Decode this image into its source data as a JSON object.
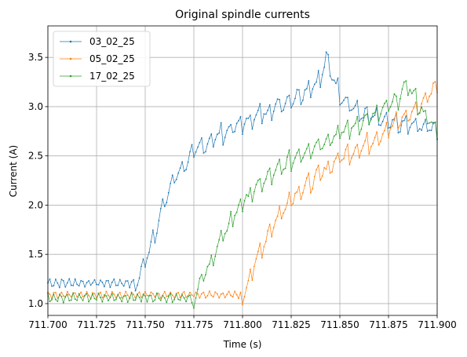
{
  "chart_data": {
    "type": "line",
    "title": "Original spindle currents",
    "xlabel": "Time (s)",
    "ylabel": "Current (A)",
    "xlim": [
      711.7,
      711.9
    ],
    "ylim": [
      0.88,
      3.82
    ],
    "xticks": [
      711.7,
      711.725,
      711.75,
      711.775,
      711.8,
      711.825,
      711.85,
      711.875,
      711.9
    ],
    "xtick_labels": [
      "711.700",
      "711.725",
      "711.750",
      "711.775",
      "711.800",
      "711.825",
      "711.850",
      "711.875",
      "711.900"
    ],
    "yticks": [
      1.0,
      1.5,
      2.0,
      2.5,
      3.0,
      3.5
    ],
    "ytick_labels": [
      "1.0",
      "1.5",
      "2.0",
      "2.5",
      "3.0",
      "3.5"
    ],
    "grid": true,
    "legend": "top-left",
    "marker": "dot",
    "sample_interval_s": 0.001,
    "series": [
      {
        "name": "03_02_25",
        "color": "#1f77b4",
        "baseline": {
          "start": 711.7,
          "end": 711.745,
          "low": 1.17,
          "high": 1.25
        },
        "ramp": [
          [
            711.745,
            1.2
          ],
          [
            711.75,
            1.45
          ],
          [
            711.755,
            1.75
          ],
          [
            711.76,
            2.05
          ],
          [
            711.765,
            2.3
          ],
          [
            711.775,
            2.55
          ],
          [
            711.785,
            2.7
          ],
          [
            711.8,
            2.85
          ],
          [
            711.815,
            3.0
          ],
          [
            711.83,
            3.15
          ],
          [
            711.84,
            3.3
          ],
          [
            711.843,
            3.5
          ]
        ],
        "decline": [
          [
            711.843,
            3.5
          ],
          [
            711.85,
            3.15
          ],
          [
            711.86,
            2.95
          ],
          [
            711.875,
            2.85
          ],
          [
            711.9,
            2.8
          ]
        ],
        "ripple": 0.2
      },
      {
        "name": "05_02_25",
        "color": "#ff7f0e",
        "baseline": {
          "start": 711.7,
          "end": 711.8,
          "low": 1.06,
          "high": 1.12
        },
        "ramp": [
          [
            711.8,
            1.1
          ],
          [
            711.805,
            1.35
          ],
          [
            711.81,
            1.6
          ],
          [
            711.815,
            1.8
          ],
          [
            711.82,
            1.95
          ],
          [
            711.825,
            2.1
          ],
          [
            711.835,
            2.25
          ],
          [
            711.85,
            2.5
          ],
          [
            711.865,
            2.65
          ],
          [
            711.875,
            2.8
          ],
          [
            711.89,
            3.0
          ],
          [
            711.9,
            3.25
          ]
        ],
        "ripple": 0.2
      },
      {
        "name": "17_02_25",
        "color": "#2ca02c",
        "baseline": {
          "start": 711.7,
          "end": 711.775,
          "low": 1.02,
          "high": 1.1
        },
        "ramp": [
          [
            711.775,
            1.05
          ],
          [
            711.78,
            1.3
          ],
          [
            711.785,
            1.5
          ],
          [
            711.79,
            1.7
          ],
          [
            711.795,
            1.9
          ],
          [
            711.8,
            2.05
          ],
          [
            711.81,
            2.25
          ],
          [
            711.82,
            2.4
          ],
          [
            711.83,
            2.55
          ],
          [
            711.845,
            2.7
          ],
          [
            711.855,
            2.8
          ],
          [
            711.87,
            2.95
          ],
          [
            711.88,
            3.1
          ],
          [
            711.885,
            3.25
          ],
          [
            711.89,
            3.05
          ],
          [
            711.9,
            2.75
          ]
        ],
        "ripple": 0.2
      }
    ]
  }
}
